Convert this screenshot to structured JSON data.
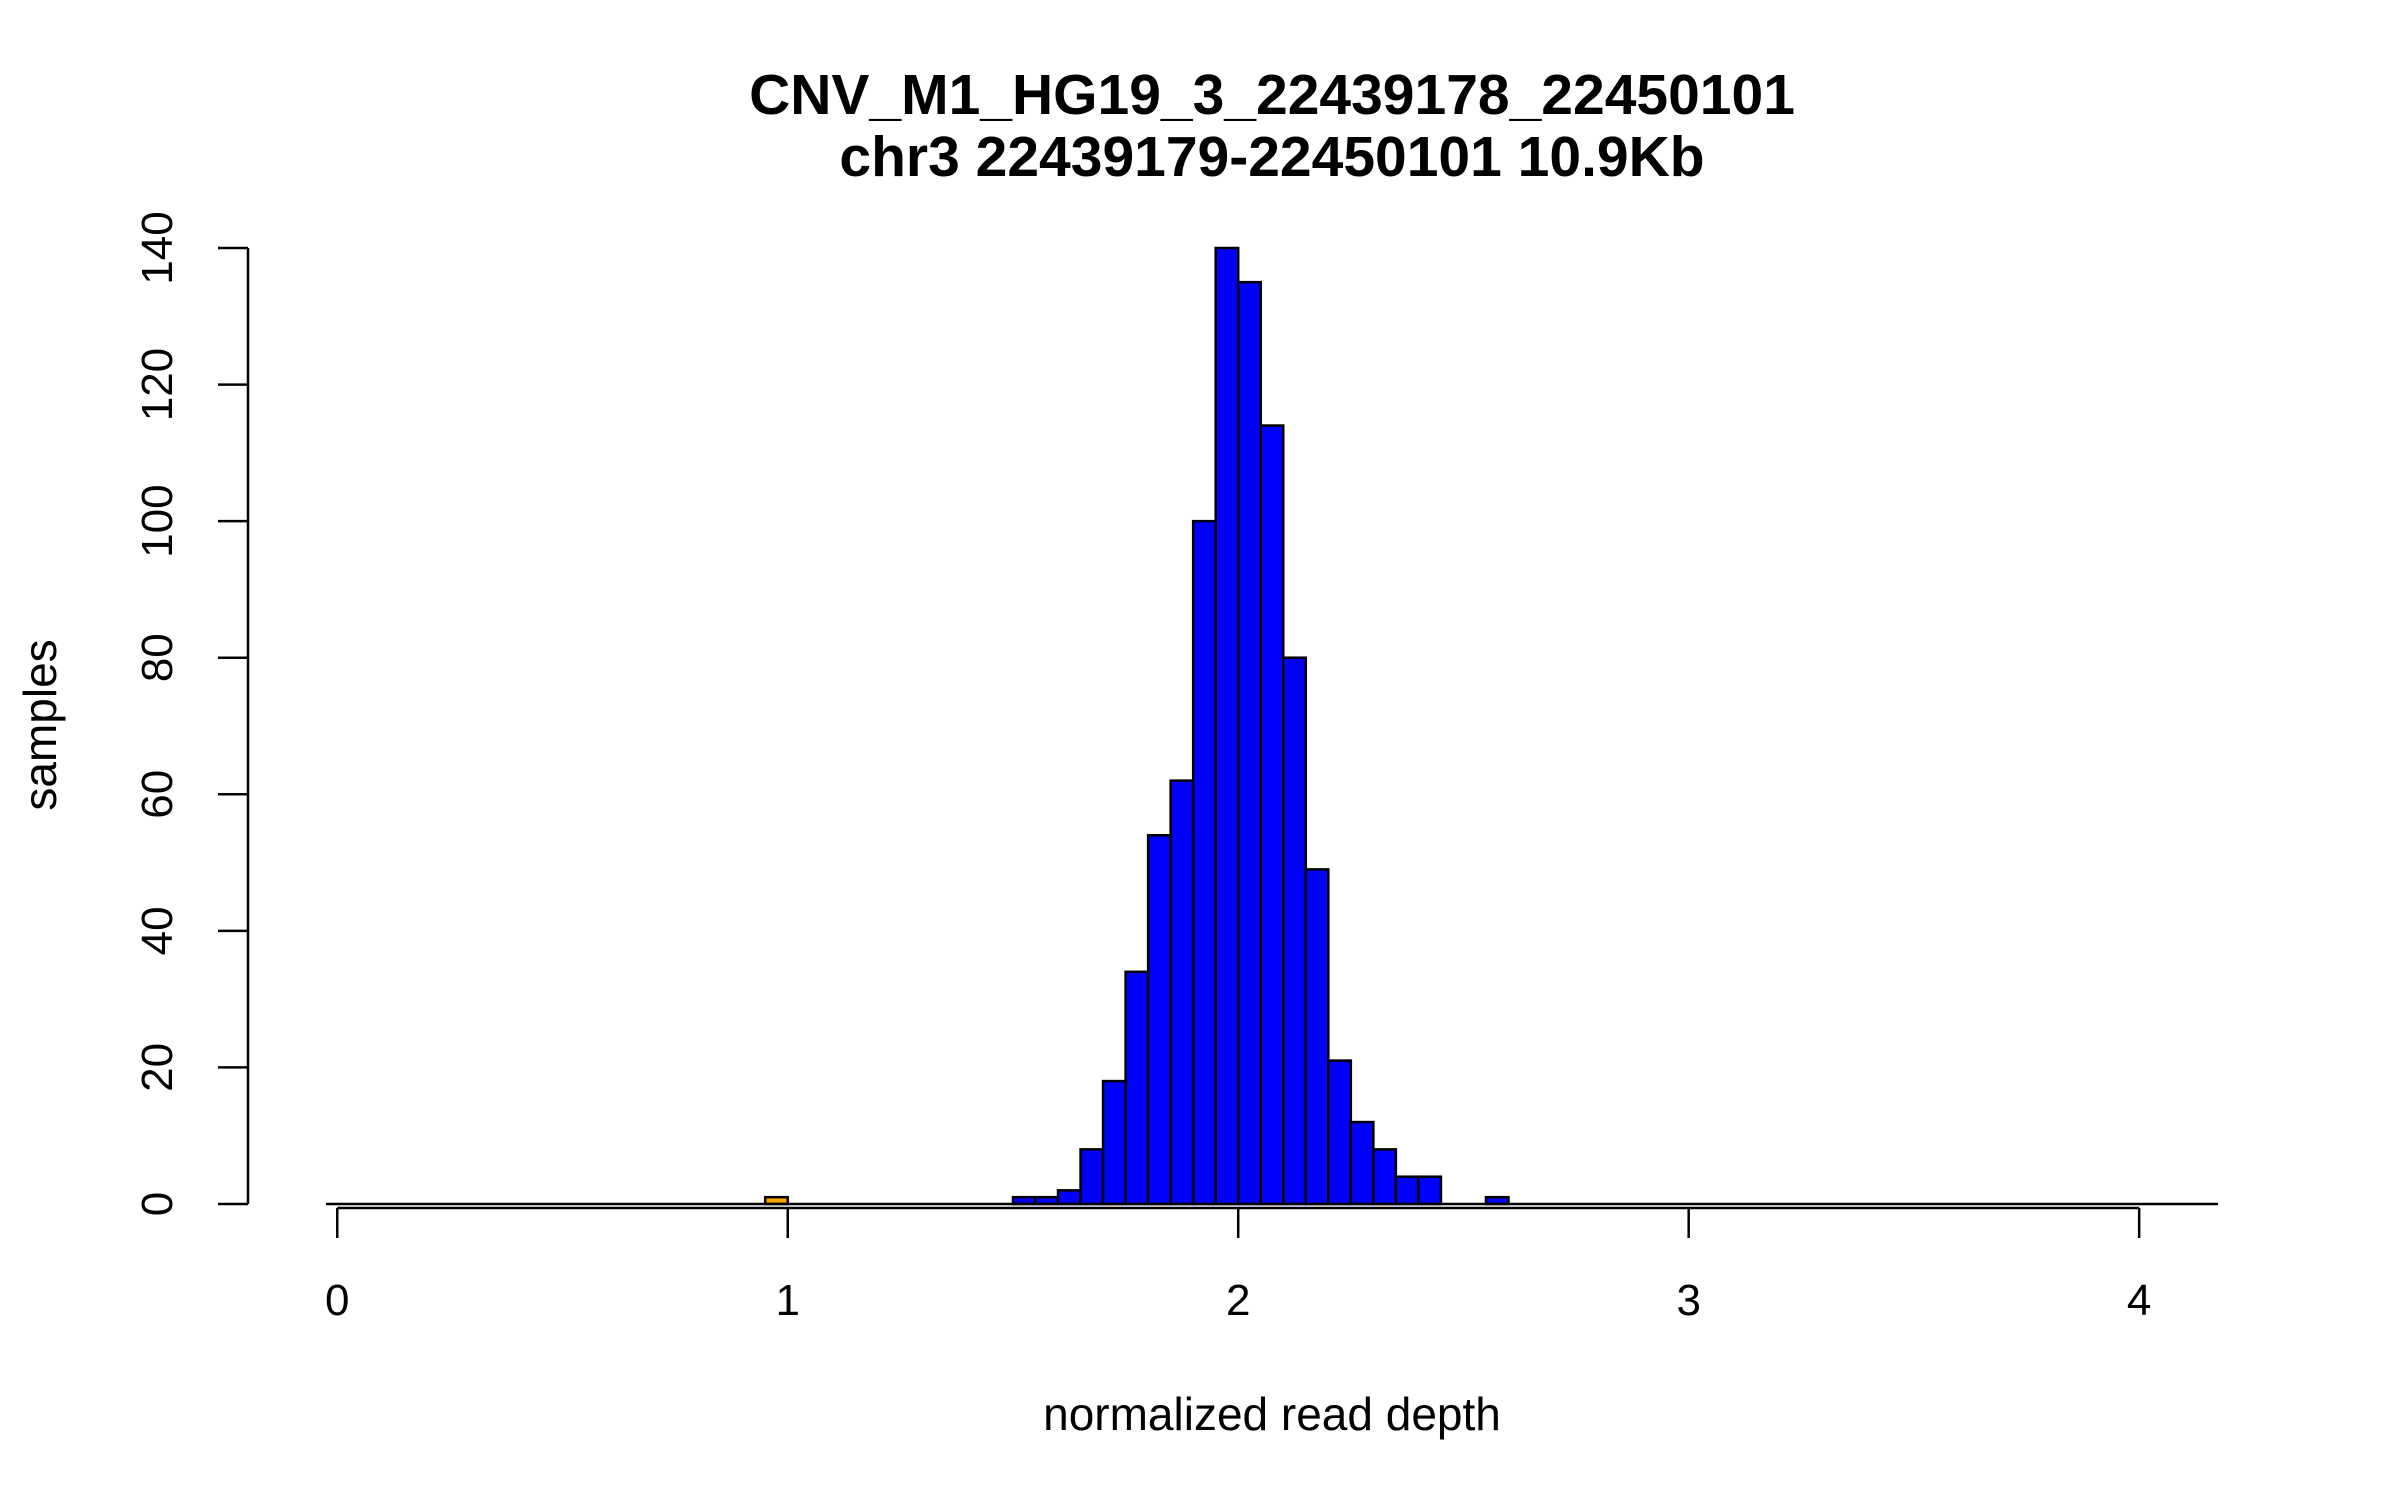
{
  "chart_data": {
    "type": "bar",
    "title": "CNV_M1_HG19_3_22439178_22450101",
    "subtitle": "chr3 22439179-22450101 10.9Kb",
    "xlabel": "normalized read depth",
    "ylabel": "samples",
    "xlim": [
      -0.025,
      4.175
    ],
    "ylim": [
      0,
      140
    ],
    "x_ticks": [
      0,
      1,
      2,
      3,
      4
    ],
    "y_ticks": [
      0,
      20,
      40,
      60,
      80,
      100,
      120,
      140
    ],
    "bin_width": 0.05,
    "grid": false,
    "legend": "none",
    "colors": {
      "main": "#0000ff",
      "outlier": "#ffa500",
      "border": "#000000"
    },
    "bins": [
      {
        "x0": 0.95,
        "x1": 1.0,
        "count": 1,
        "color": "#ffa500"
      },
      {
        "x0": 1.5,
        "x1": 1.55,
        "count": 1,
        "color": "#0000ff"
      },
      {
        "x0": 1.55,
        "x1": 1.6,
        "count": 1,
        "color": "#0000ff"
      },
      {
        "x0": 1.6,
        "x1": 1.65,
        "count": 2,
        "color": "#0000ff"
      },
      {
        "x0": 1.65,
        "x1": 1.7,
        "count": 8,
        "color": "#0000ff"
      },
      {
        "x0": 1.7,
        "x1": 1.75,
        "count": 18,
        "color": "#0000ff"
      },
      {
        "x0": 1.75,
        "x1": 1.8,
        "count": 34,
        "color": "#0000ff"
      },
      {
        "x0": 1.8,
        "x1": 1.85,
        "count": 54,
        "color": "#0000ff"
      },
      {
        "x0": 1.85,
        "x1": 1.9,
        "count": 62,
        "color": "#0000ff"
      },
      {
        "x0": 1.9,
        "x1": 1.95,
        "count": 100,
        "color": "#0000ff"
      },
      {
        "x0": 1.95,
        "x1": 2.0,
        "count": 140,
        "color": "#0000ff"
      },
      {
        "x0": 2.0,
        "x1": 2.05,
        "count": 135,
        "color": "#0000ff"
      },
      {
        "x0": 2.05,
        "x1": 2.1,
        "count": 114,
        "color": "#0000ff"
      },
      {
        "x0": 2.1,
        "x1": 2.15,
        "count": 80,
        "color": "#0000ff"
      },
      {
        "x0": 2.15,
        "x1": 2.2,
        "count": 49,
        "color": "#0000ff"
      },
      {
        "x0": 2.2,
        "x1": 2.25,
        "count": 21,
        "color": "#0000ff"
      },
      {
        "x0": 2.25,
        "x1": 2.3,
        "count": 12,
        "color": "#0000ff"
      },
      {
        "x0": 2.3,
        "x1": 2.35,
        "count": 8,
        "color": "#0000ff"
      },
      {
        "x0": 2.35,
        "x1": 2.4,
        "count": 4,
        "color": "#0000ff"
      },
      {
        "x0": 2.4,
        "x1": 2.45,
        "count": 4,
        "color": "#0000ff"
      },
      {
        "x0": 2.55,
        "x1": 2.6,
        "count": 1,
        "color": "#0000ff"
      }
    ]
  }
}
